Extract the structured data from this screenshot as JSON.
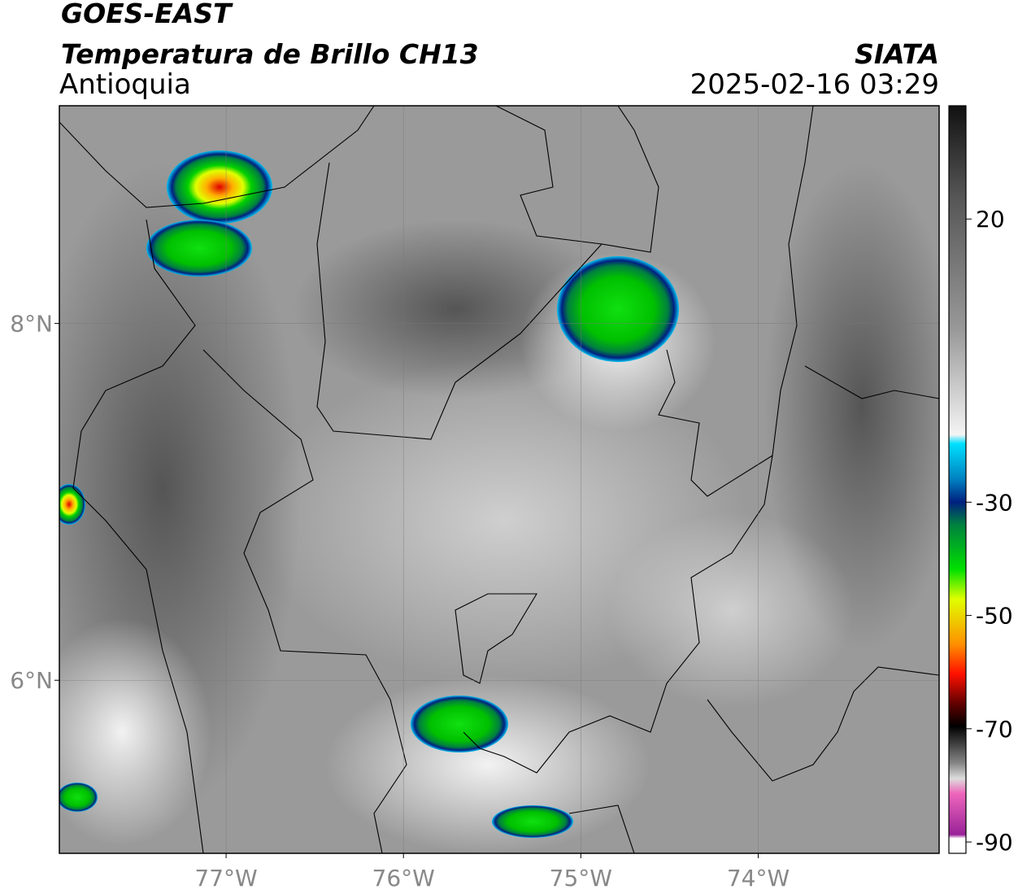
{
  "header": {
    "satellite": "GOES-EAST",
    "product": "Temperatura de Brillo CH13",
    "region": "Antioquia",
    "source": "SIATA",
    "datetime": "2025-02-16 03:29"
  },
  "map": {
    "xlim": [
      -77.94,
      -72.98
    ],
    "ylim": [
      5.03,
      9.22
    ],
    "xticks": [
      {
        "value": -77,
        "label": "77°W"
      },
      {
        "value": -76,
        "label": "76°W"
      },
      {
        "value": -75,
        "label": "75°W"
      },
      {
        "value": -74,
        "label": "74°W"
      }
    ],
    "yticks": [
      {
        "value": 6,
        "label": "6°N"
      },
      {
        "value": 8,
        "label": "8°N"
      }
    ]
  },
  "colorbar": {
    "lim": [
      40,
      -92
    ],
    "ticks": [
      20,
      -30,
      -50,
      -70,
      -90
    ]
  }
}
